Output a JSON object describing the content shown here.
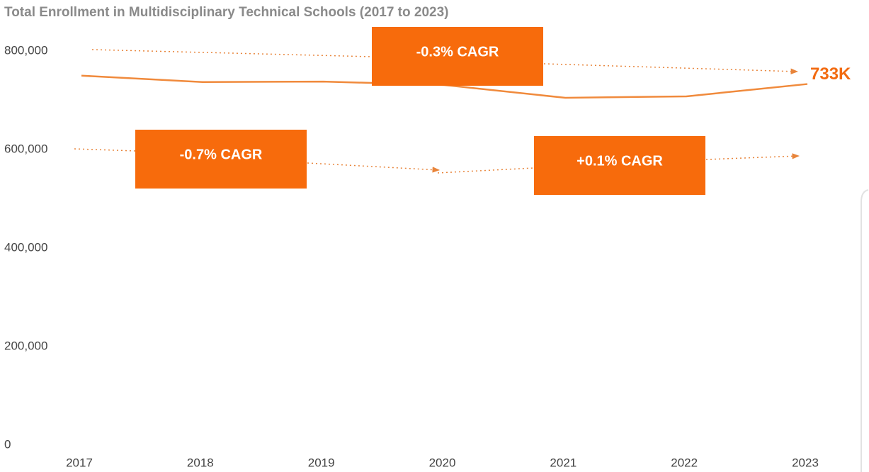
{
  "chart_data": {
    "type": "line",
    "title": "Total Enrollment in Multidisciplinary Technical Schools (2017 to 2023)",
    "categories": [
      "2017",
      "2018",
      "2019",
      "2020",
      "2021",
      "2022",
      "2023"
    ],
    "series": [
      {
        "name": "Total Enrollment",
        "color": "#f08a3c",
        "values": [
          750000,
          737000,
          738000,
          731000,
          705000,
          708000,
          733000
        ],
        "value_labels": [
          null,
          null,
          null,
          null,
          null,
          null,
          "733K"
        ]
      }
    ],
    "ylim": [
      0,
      800000
    ],
    "yticks": [
      0,
      {
        "value": 200000,
        "label": "200,000"
      },
      {
        "value": 400000,
        "label": "400,000"
      },
      {
        "value": 600000,
        "label": "600,000"
      },
      {
        "value": 800000,
        "label": "800,000"
      }
    ],
    "annotations": [
      "-0.3% CAGR",
      "-0.7% CAGR",
      "+0.1% CAGR"
    ]
  }
}
